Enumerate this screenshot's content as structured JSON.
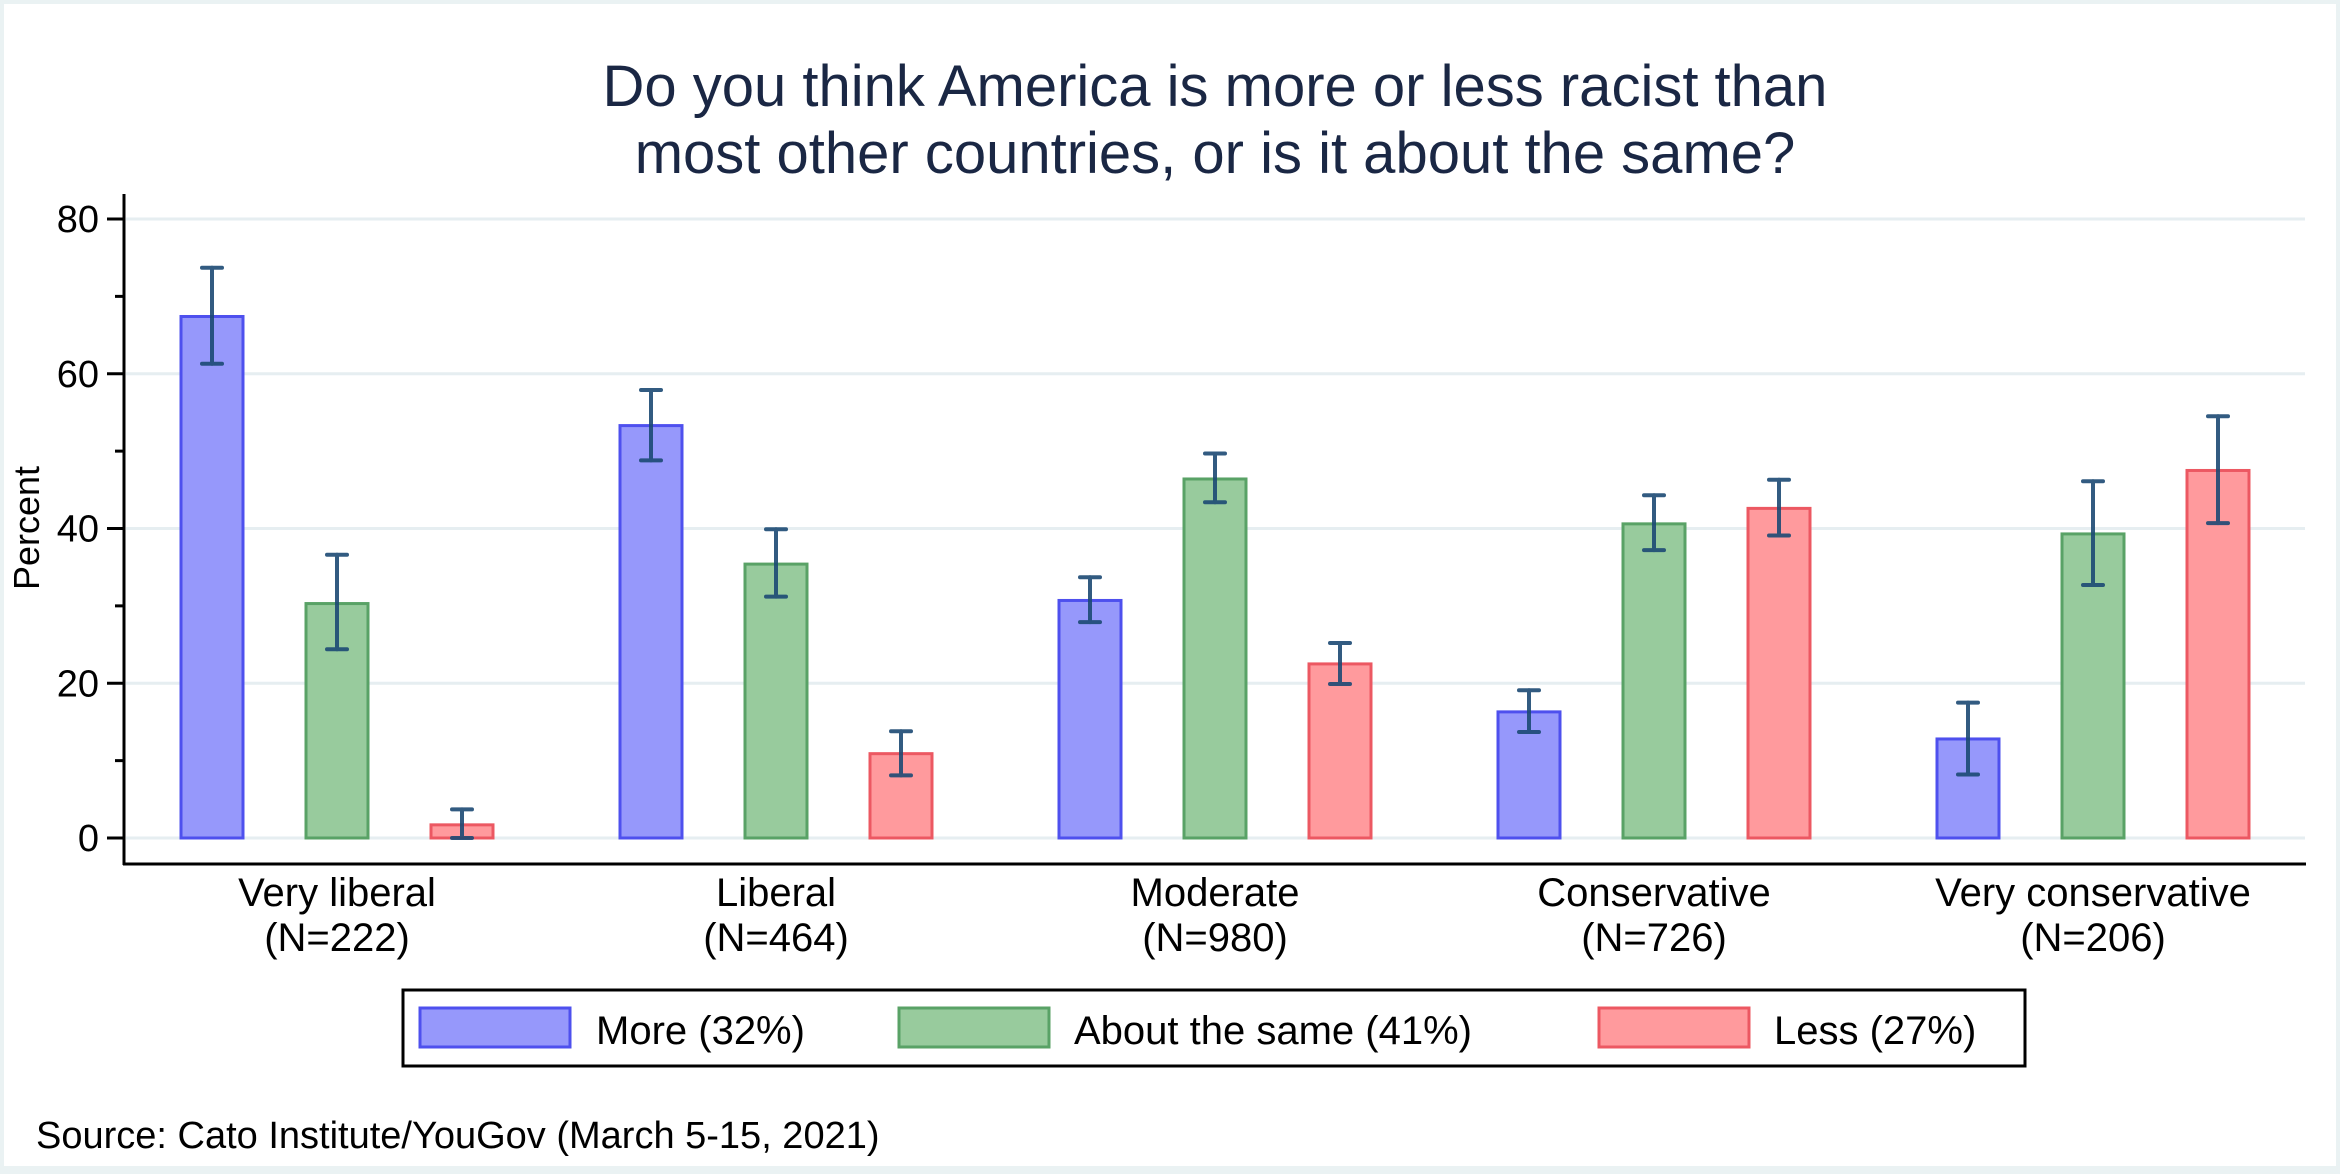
{
  "chart_data": {
    "type": "bar",
    "title": [
      "Do you think America is more or less racist than",
      "most other countries, or is it about the same?"
    ],
    "xlabel": "",
    "ylabel": "Percent",
    "ylim": [
      0,
      80
    ],
    "yticks": [
      0,
      20,
      40,
      60,
      80
    ],
    "yminor_ticks": [
      10,
      30,
      50,
      70
    ],
    "grid": true,
    "legend_position": "bottom",
    "categories": [
      {
        "label": "Very liberal",
        "n": "(N=222)"
      },
      {
        "label": "Liberal",
        "n": "(N=464)"
      },
      {
        "label": "Moderate",
        "n": "(N=980)"
      },
      {
        "label": "Conservative",
        "n": "(N=726)"
      },
      {
        "label": "Very conservative",
        "n": "(N=206)"
      }
    ],
    "series": [
      {
        "name": "More (32%)",
        "fill": "#9698fb",
        "stroke": "#4e50ee",
        "values": [
          67.4,
          53.3,
          30.7,
          16.3,
          12.8
        ],
        "ci_low": [
          61.3,
          48.8,
          27.9,
          13.7,
          8.2
        ],
        "ci_high": [
          73.7,
          57.9,
          33.7,
          19.1,
          17.5
        ]
      },
      {
        "name": "About the same (41%)",
        "fill": "#98cb9d",
        "stroke": "#59a266",
        "values": [
          30.3,
          35.4,
          46.4,
          40.6,
          39.3
        ],
        "ci_low": [
          24.4,
          31.2,
          43.4,
          37.2,
          32.7
        ],
        "ci_high": [
          36.6,
          39.9,
          49.7,
          44.3,
          46.1
        ]
      },
      {
        "name": "Less (27%)",
        "fill": "#ff9a9d",
        "stroke": "#ec5862",
        "values": [
          1.7,
          10.9,
          22.5,
          42.6,
          47.5
        ],
        "ci_low": [
          0.0,
          8.1,
          19.9,
          39.1,
          40.7
        ],
        "ci_high": [
          3.7,
          13.8,
          25.2,
          46.3,
          54.5
        ]
      }
    ],
    "errorbar_color": "#1c4a74",
    "source": "Source: Cato Institute/YouGov (March 5-15, 2021)"
  }
}
